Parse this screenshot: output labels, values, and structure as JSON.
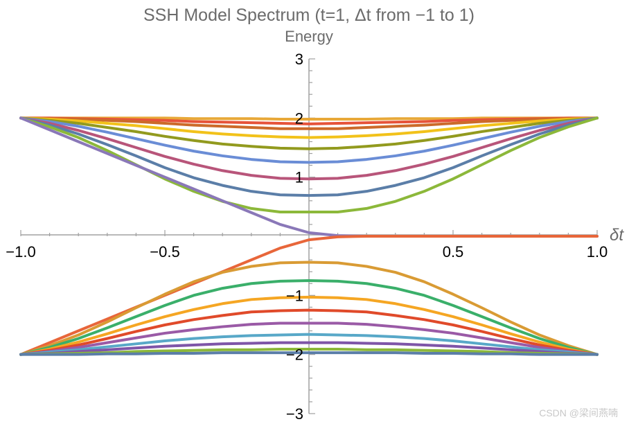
{
  "chart_data": {
    "type": "line",
    "title": "SSH Model Spectrum (t=1, Δt from −1 to 1)",
    "xlabel": "δt",
    "ylabel": "Energy",
    "xlim": [
      -1,
      1
    ],
    "ylim": [
      -3,
      3
    ],
    "x_ticks": [
      -1.0,
      -0.5,
      0.5,
      1.0
    ],
    "x_tick_labels": [
      "−1.0",
      "−0.5",
      "0.5",
      "1.0"
    ],
    "y_ticks": [
      3,
      2,
      1,
      -1,
      -2,
      -3
    ],
    "y_tick_labels": [
      "3",
      "2",
      "1",
      "−1",
      "−2",
      "−3"
    ],
    "grid": false,
    "x": [
      -1.0,
      -0.9,
      -0.8,
      -0.7,
      -0.6,
      -0.5,
      -0.4,
      -0.3,
      -0.2,
      -0.1,
      0.0,
      0.1,
      0.2,
      0.3,
      0.4,
      0.5,
      0.6,
      0.7,
      0.8,
      0.9,
      1.0
    ],
    "series": [
      {
        "color": "#e8a838",
        "values": [
          2.0,
          2.0,
          2.0,
          2.0,
          2.0,
          2.0,
          1.99,
          1.99,
          1.99,
          1.98,
          1.98,
          1.98,
          1.98,
          1.99,
          1.99,
          1.99,
          2.0,
          2.0,
          2.0,
          2.0,
          2.0
        ]
      },
      {
        "color": "#e6533a",
        "values": [
          2.0,
          2.0,
          1.99,
          1.98,
          1.97,
          1.96,
          1.94,
          1.93,
          1.92,
          1.91,
          1.9,
          1.91,
          1.92,
          1.93,
          1.94,
          1.96,
          1.97,
          1.98,
          1.99,
          2.0,
          2.0
        ]
      },
      {
        "color": "#cc6a2a",
        "values": [
          2.0,
          1.99,
          1.98,
          1.96,
          1.94,
          1.91,
          1.88,
          1.86,
          1.84,
          1.82,
          1.82,
          1.82,
          1.84,
          1.86,
          1.88,
          1.91,
          1.94,
          1.96,
          1.98,
          1.99,
          2.0
        ]
      },
      {
        "color": "#f2c21a",
        "values": [
          2.0,
          1.98,
          1.95,
          1.91,
          1.87,
          1.82,
          1.77,
          1.73,
          1.7,
          1.68,
          1.67,
          1.68,
          1.7,
          1.73,
          1.77,
          1.82,
          1.87,
          1.91,
          1.95,
          1.98,
          2.0
        ]
      },
      {
        "color": "#929a1e",
        "values": [
          2.0,
          1.96,
          1.91,
          1.84,
          1.77,
          1.69,
          1.62,
          1.56,
          1.52,
          1.49,
          1.48,
          1.49,
          1.52,
          1.56,
          1.62,
          1.69,
          1.77,
          1.84,
          1.91,
          1.96,
          2.0
        ]
      },
      {
        "color": "#6a8dd6",
        "values": [
          2.0,
          1.94,
          1.86,
          1.76,
          1.65,
          1.54,
          1.44,
          1.36,
          1.3,
          1.26,
          1.25,
          1.26,
          1.3,
          1.36,
          1.44,
          1.54,
          1.65,
          1.76,
          1.86,
          1.94,
          2.0
        ]
      },
      {
        "color": "#b8557a",
        "values": [
          2.0,
          1.91,
          1.79,
          1.65,
          1.5,
          1.35,
          1.22,
          1.11,
          1.03,
          0.98,
          0.97,
          0.98,
          1.03,
          1.11,
          1.22,
          1.35,
          1.5,
          1.65,
          1.79,
          1.91,
          2.0
        ]
      },
      {
        "color": "#5b7ea8",
        "values": [
          2.0,
          1.88,
          1.73,
          1.55,
          1.36,
          1.16,
          0.99,
          0.86,
          0.76,
          0.7,
          0.69,
          0.7,
          0.76,
          0.86,
          0.99,
          1.16,
          1.36,
          1.55,
          1.73,
          1.88,
          2.0
        ]
      },
      {
        "color": "#8cb83a",
        "values": [
          2.0,
          1.85,
          1.67,
          1.45,
          1.21,
          0.97,
          0.76,
          0.59,
          0.47,
          0.41,
          0.41,
          0.41,
          0.47,
          0.59,
          0.76,
          0.97,
          1.21,
          1.45,
          1.67,
          1.85,
          2.0
        ]
      },
      {
        "color": "#8a78b8",
        "values": [
          2.0,
          1.8,
          1.6,
          1.4,
          1.2,
          1.0,
          0.8,
          0.6,
          0.4,
          0.2,
          0.06,
          0.01,
          0.0,
          0.0,
          0.0,
          0.0,
          0.0,
          0.0,
          0.0,
          0.0,
          0.0
        ]
      },
      {
        "color": "#e8663a",
        "values": [
          -2.0,
          -1.8,
          -1.6,
          -1.4,
          -1.2,
          -1.0,
          -0.8,
          -0.6,
          -0.4,
          -0.2,
          -0.06,
          -0.01,
          0.0,
          0.0,
          0.0,
          0.0,
          0.0,
          0.0,
          0.0,
          0.0,
          0.0
        ]
      },
      {
        "color": "#d99b34",
        "values": [
          -2.0,
          -1.85,
          -1.67,
          -1.45,
          -1.21,
          -0.98,
          -0.77,
          -0.61,
          -0.51,
          -0.45,
          -0.44,
          -0.45,
          -0.51,
          -0.61,
          -0.77,
          -0.98,
          -1.21,
          -1.45,
          -1.67,
          -1.85,
          -2.0
        ]
      },
      {
        "color": "#3aaf6a",
        "values": [
          -2.0,
          -1.88,
          -1.73,
          -1.55,
          -1.36,
          -1.17,
          -1.0,
          -0.88,
          -0.8,
          -0.76,
          -0.75,
          -0.76,
          -0.8,
          -0.88,
          -1.0,
          -1.17,
          -1.36,
          -1.55,
          -1.73,
          -1.88,
          -2.0
        ]
      },
      {
        "color": "#f5a623",
        "values": [
          -2.0,
          -1.91,
          -1.79,
          -1.65,
          -1.5,
          -1.36,
          -1.24,
          -1.14,
          -1.07,
          -1.04,
          -1.03,
          -1.04,
          -1.07,
          -1.14,
          -1.24,
          -1.36,
          -1.5,
          -1.65,
          -1.79,
          -1.91,
          -2.0
        ]
      },
      {
        "color": "#e04a2a",
        "values": [
          -2.0,
          -1.93,
          -1.84,
          -1.73,
          -1.61,
          -1.5,
          -1.41,
          -1.34,
          -1.28,
          -1.26,
          -1.25,
          -1.26,
          -1.28,
          -1.34,
          -1.41,
          -1.5,
          -1.61,
          -1.73,
          -1.84,
          -1.93,
          -2.0
        ]
      },
      {
        "color": "#9a5aa6",
        "values": [
          -2.0,
          -1.95,
          -1.88,
          -1.8,
          -1.72,
          -1.64,
          -1.58,
          -1.53,
          -1.49,
          -1.47,
          -1.47,
          -1.47,
          -1.49,
          -1.53,
          -1.58,
          -1.64,
          -1.72,
          -1.8,
          -1.88,
          -1.95,
          -2.0
        ]
      },
      {
        "color": "#58a8c8",
        "values": [
          -2.0,
          -1.96,
          -1.92,
          -1.87,
          -1.82,
          -1.77,
          -1.73,
          -1.7,
          -1.68,
          -1.67,
          -1.66,
          -1.67,
          -1.68,
          -1.7,
          -1.73,
          -1.77,
          -1.82,
          -1.87,
          -1.92,
          -1.96,
          -2.0
        ]
      },
      {
        "color": "#7e55a8",
        "values": [
          -2.0,
          -1.98,
          -1.95,
          -1.92,
          -1.89,
          -1.86,
          -1.84,
          -1.82,
          -1.81,
          -1.8,
          -1.8,
          -1.8,
          -1.81,
          -1.82,
          -1.84,
          -1.86,
          -1.89,
          -1.92,
          -1.95,
          -1.98,
          -2.0
        ]
      },
      {
        "color": "#8cb83a",
        "values": [
          -2.0,
          -1.99,
          -1.98,
          -1.97,
          -1.95,
          -1.94,
          -1.93,
          -1.92,
          -1.92,
          -1.91,
          -1.91,
          -1.91,
          -1.92,
          -1.92,
          -1.93,
          -1.94,
          -1.95,
          -1.97,
          -1.98,
          -1.99,
          -2.0
        ]
      },
      {
        "color": "#5b7ea8",
        "values": [
          -2.0,
          -2.0,
          -2.0,
          -1.99,
          -1.99,
          -1.98,
          -1.98,
          -1.97,
          -1.97,
          -1.97,
          -1.97,
          -1.97,
          -1.97,
          -1.97,
          -1.98,
          -1.98,
          -1.99,
          -1.99,
          -2.0,
          -2.0,
          -2.0
        ]
      }
    ]
  },
  "watermark": "CSDN @梁间燕喃"
}
